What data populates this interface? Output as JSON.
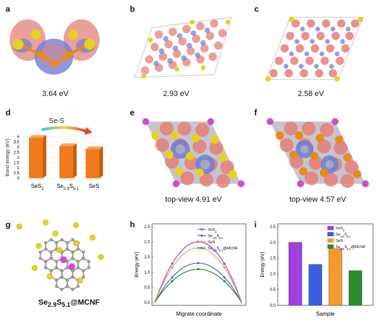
{
  "panels": {
    "a": {
      "label": "a",
      "caption": "3.64 eV"
    },
    "b": {
      "label": "b",
      "caption": "2.93 eV"
    },
    "c": {
      "label": "c",
      "caption": "2.58 eV"
    },
    "d": {
      "label": "d"
    },
    "e": {
      "label": "e",
      "caption": "top-view  4.91 eV"
    },
    "f": {
      "label": "f",
      "caption": "top-view  4.57 eV"
    },
    "g": {
      "label": "g",
      "caption": "Se2.9S5.1@MCNF"
    },
    "h": {
      "label": "h"
    },
    "i": {
      "label": "i"
    }
  },
  "colors": {
    "sulfur": "#e6d21a",
    "selenium": "#e88a1a",
    "isosurface_red": "#e4807a",
    "isosurface_blue": "#6b7fd6",
    "carbon": "#9a9a9a",
    "purple": "#d04bd4",
    "bar_orange": "#f07a1c",
    "series_purple": "#a040e0",
    "series_blue": "#3a5fe0",
    "series_orange": "#f59a30",
    "series_green": "#2e8b2e"
  },
  "chart_data": [
    {
      "id": "d",
      "type": "bar",
      "categories": [
        "SeS2",
        "Se2.9S5.1",
        "SeS"
      ],
      "values": [
        3.9,
        3.1,
        2.8
      ],
      "ylabel": "Bond energy (eV)",
      "annotation": "Se-S",
      "yticks": [
        "0",
        "0.5",
        "1",
        "1.5",
        "2",
        "2.5",
        "3",
        "3.5",
        "4"
      ],
      "ylim": [
        0,
        4
      ]
    },
    {
      "id": "h",
      "type": "line",
      "xlabel": "Migrate coordinate",
      "ylabel": "Energy (eV)",
      "ylim": [
        0,
        2.5
      ],
      "yticks": [
        "0.0",
        "0.5",
        "1.0",
        "1.5",
        "2.0",
        "2.5"
      ],
      "series": [
        {
          "name": "SeS2",
          "peak": 2.0
        },
        {
          "name": "Se2.9S5.1",
          "peak": 1.3
        },
        {
          "name": "SeS",
          "peak": 1.8
        },
        {
          "name": "Se2.9S5.1@MCNF",
          "peak": 1.1
        }
      ]
    },
    {
      "id": "i",
      "type": "bar",
      "xlabel": "Sample",
      "ylabel": "Energy (eV)",
      "ylim": [
        0,
        2.5
      ],
      "yticks": [
        "0.0",
        "0.5",
        "1.0",
        "1.5",
        "2.0",
        "2.5"
      ],
      "series": [
        {
          "name": "SeS2",
          "value": 2.0
        },
        {
          "name": "Se2.9S5.1",
          "value": 1.3
        },
        {
          "name": "SeS",
          "value": 1.8
        },
        {
          "name": "Se2.9S5.1@MCNF",
          "value": 1.1
        }
      ]
    }
  ]
}
